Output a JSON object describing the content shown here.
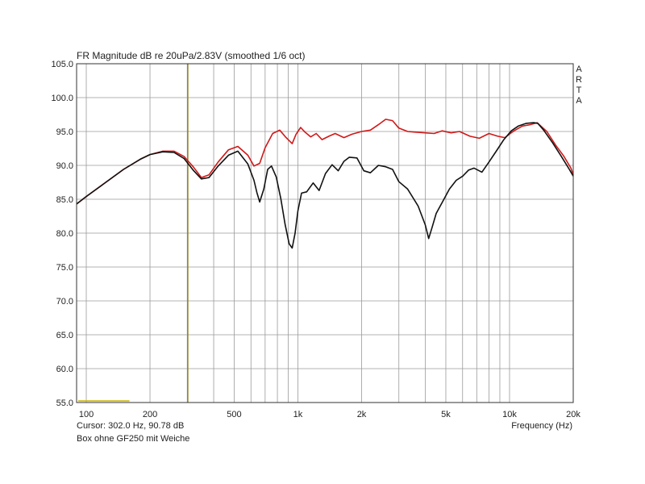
{
  "chart_data": {
    "type": "line",
    "title": "FR Magnitude dB re 20uPa/2.83V (smoothed 1/6 oct)",
    "xlabel": "Frequency (Hz)",
    "ylabel": "",
    "x_scale": "log",
    "xlim": [
      90,
      20000
    ],
    "ylim": [
      55,
      105
    ],
    "y_ticks": [
      "55.0",
      "60.0",
      "65.0",
      "70.0",
      "75.0",
      "80.0",
      "85.0",
      "90.0",
      "95.0",
      "100.0",
      "105.0"
    ],
    "x_tick_values": [
      100,
      200,
      500,
      1000,
      2000,
      5000,
      10000,
      20000
    ],
    "x_tick_labels": [
      "100",
      "200",
      "500",
      "1k",
      "2k",
      "5k",
      "10k",
      "20k"
    ],
    "grid": true,
    "cursor": {
      "frequency_hz": 302,
      "readout": "Cursor: 302.0 Hz, 90.78 dB"
    },
    "subtitle": "Box ohne GF250 mit Weiche",
    "brand": "ARTA",
    "series": [
      {
        "color": "#d01818",
        "x": [
          90,
          100,
          120,
          150,
          180,
          200,
          230,
          260,
          290,
          320,
          350,
          380,
          420,
          470,
          520,
          580,
          620,
          660,
          700,
          760,
          820,
          880,
          940,
          980,
          1030,
          1080,
          1150,
          1220,
          1300,
          1400,
          1500,
          1650,
          1800,
          2000,
          2200,
          2400,
          2600,
          2800,
          3000,
          3300,
          3600,
          4000,
          4400,
          4800,
          5300,
          5800,
          6500,
          7200,
          8000,
          8800,
          9500,
          10500,
          11500,
          12500,
          13500,
          15000,
          16500,
          18000,
          19500,
          20000
        ],
        "y": [
          84.3,
          85.4,
          87.2,
          89.4,
          90.9,
          91.6,
          92.1,
          92.1,
          91.3,
          89.8,
          88.2,
          88.6,
          90.5,
          92.3,
          92.8,
          91.5,
          89.9,
          90.3,
          92.6,
          94.7,
          95.2,
          94.1,
          93.2,
          94.6,
          95.6,
          94.9,
          94.2,
          94.7,
          93.8,
          94.3,
          94.7,
          94.1,
          94.6,
          95.0,
          95.2,
          96.0,
          96.8,
          96.6,
          95.5,
          95.0,
          94.9,
          94.8,
          94.7,
          95.1,
          94.8,
          95.0,
          94.3,
          94.0,
          94.7,
          94.3,
          94.1,
          95.1,
          95.8,
          96.0,
          96.3,
          95.0,
          93.0,
          91.4,
          89.6,
          88.6
        ]
      },
      {
        "color": "#111111",
        "x": [
          90,
          100,
          120,
          150,
          180,
          200,
          230,
          260,
          290,
          320,
          350,
          380,
          420,
          470,
          520,
          580,
          620,
          640,
          660,
          690,
          720,
          750,
          790,
          830,
          870,
          910,
          940,
          970,
          1000,
          1040,
          1100,
          1180,
          1260,
          1350,
          1450,
          1550,
          1650,
          1750,
          1900,
          2050,
          2200,
          2400,
          2600,
          2800,
          3000,
          3300,
          3700,
          4000,
          4150,
          4300,
          4500,
          4800,
          5200,
          5600,
          6000,
          6400,
          6800,
          7400,
          8000,
          8700,
          9400,
          10200,
          11000,
          12000,
          13000,
          13600,
          14500,
          16000,
          17500,
          19000,
          20000
        ],
        "y": [
          84.3,
          85.4,
          87.2,
          89.4,
          90.9,
          91.6,
          92.0,
          91.9,
          91.0,
          89.3,
          88.0,
          88.2,
          89.9,
          91.5,
          92.1,
          90.2,
          87.8,
          86.0,
          84.6,
          86.5,
          89.4,
          89.9,
          88.3,
          85.1,
          81.3,
          78.4,
          77.8,
          80.0,
          83.3,
          85.9,
          86.1,
          87.4,
          86.3,
          88.8,
          90.1,
          89.2,
          90.6,
          91.2,
          91.1,
          89.2,
          88.9,
          90.0,
          89.8,
          89.4,
          87.6,
          86.5,
          84.0,
          81.2,
          79.2,
          80.8,
          82.9,
          84.5,
          86.5,
          87.8,
          88.4,
          89.3,
          89.6,
          89.0,
          90.5,
          92.2,
          93.8,
          95.1,
          95.8,
          96.2,
          96.3,
          96.2,
          95.2,
          93.3,
          91.4,
          89.6,
          88.4
        ]
      }
    ]
  }
}
